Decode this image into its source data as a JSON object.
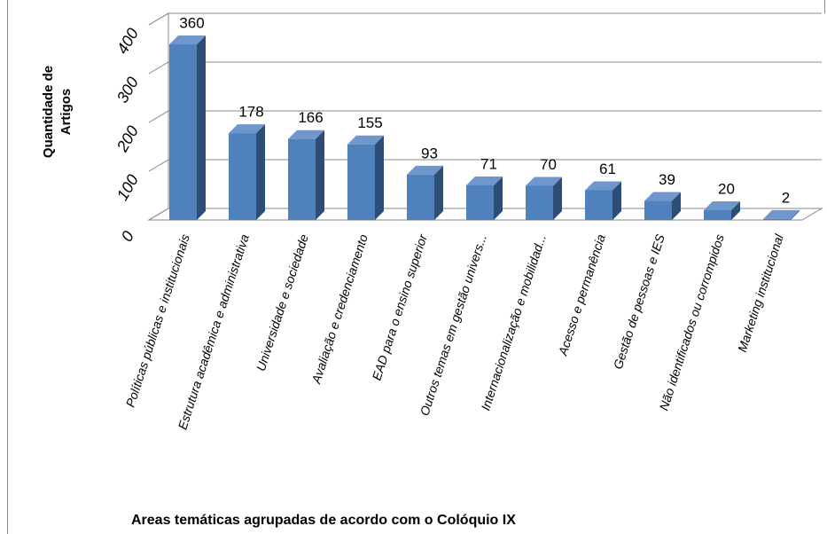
{
  "chart_data": {
    "type": "bar3d",
    "y_label": "Quantidade de Artigos",
    "x_label": "Areas temáticas agrupadas de acordo com o Colóquio IX",
    "categories": [
      "Políticas públicas e institucionais",
      "Estrutura acadêmica e administrativa",
      "Universidade e sociedade",
      "Avaliação e credenciamento",
      "EAD para o ensino superior",
      "Outros temas em gestão univers...",
      "Internacionalização e mobilidad...",
      "Acesso e permanência",
      "Gestão de pessoas e IES",
      "Não identificados ou corrompidos",
      "Marketing institucional"
    ],
    "values": [
      360,
      178,
      166,
      155,
      93,
      71,
      70,
      61,
      39,
      20,
      2
    ],
    "color": "#4f81bd",
    "ylim": [
      0,
      400
    ],
    "yticks": [
      0,
      100,
      200,
      300,
      400
    ],
    "grid": true
  }
}
